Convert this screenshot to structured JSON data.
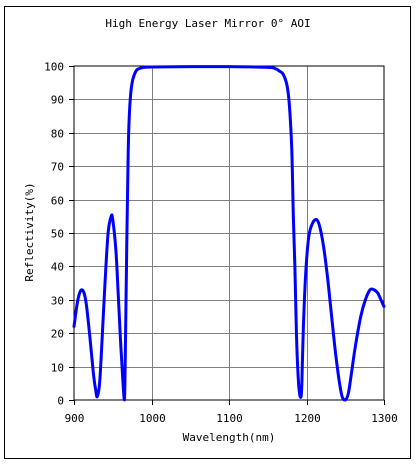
{
  "chart_data": {
    "type": "line",
    "title": "High Energy Laser Mirror 0° AOI",
    "xlabel": "Wavelength(nm)",
    "ylabel": "Reflectivity(%)",
    "xlim": [
      900,
      1300
    ],
    "ylim": [
      0,
      100
    ],
    "x_ticks": [
      900,
      1000,
      1100,
      1200,
      1300
    ],
    "y_ticks": [
      0,
      10,
      20,
      30,
      40,
      50,
      60,
      70,
      80,
      90,
      100
    ],
    "grid": true,
    "line_color": "#0000ff",
    "series": [
      {
        "x": [
          900,
          905,
          910,
          915,
          920,
          925,
          928,
          930,
          933,
          936,
          940,
          944,
          948,
          950,
          954,
          957,
          960,
          963,
          965,
          966,
          968,
          970,
          972,
          975,
          980,
          985,
          990,
          1000,
          1050,
          1100,
          1150,
          1160,
          1165,
          1170,
          1175,
          1178,
          1181,
          1183,
          1185,
          1187,
          1189,
          1191,
          1193,
          1194,
          1196,
          1199,
          1203,
          1208,
          1213,
          1217,
          1222,
          1227,
          1232,
          1237,
          1242,
          1246,
          1250,
          1254,
          1258,
          1263,
          1270,
          1276,
          1282,
          1287,
          1292,
          1296,
          1300
        ],
        "y": [
          22,
          30,
          33,
          30,
          20,
          8,
          3,
          1,
          5,
          17,
          35,
          50,
          55,
          54,
          45,
          32,
          18,
          6,
          0,
          10,
          45,
          75,
          88,
          95,
          98.5,
          99.3,
          99.6,
          99.7,
          99.8,
          99.8,
          99.6,
          99.2,
          98.5,
          97.5,
          94,
          88,
          75,
          55,
          40,
          20,
          8,
          2,
          1,
          5,
          22,
          38,
          49,
          53,
          54,
          52,
          46,
          37,
          26,
          15,
          6,
          1,
          0,
          2,
          8,
          16,
          25,
          30,
          33,
          33,
          32,
          30,
          28
        ]
      }
    ]
  }
}
